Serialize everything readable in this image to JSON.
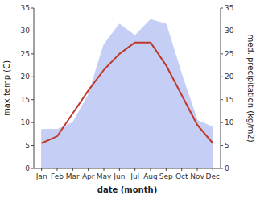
{
  "chart_data": {
    "type": "line",
    "categories": [
      "Jan",
      "Feb",
      "Mar",
      "Apr",
      "May",
      "Jun",
      "Jul",
      "Aug",
      "Sep",
      "Oct",
      "Nov",
      "Dec"
    ],
    "series": [
      {
        "type": "area",
        "axis": "y2",
        "color": "#c5cef5",
        "values": [
          8.5,
          8.5,
          10.0,
          16.0,
          27.0,
          31.5,
          29.0,
          32.5,
          31.5,
          20.5,
          10.5,
          9.0
        ]
      },
      {
        "type": "line",
        "color": "#c0392b",
        "values": [
          5.5,
          7.0,
          12.0,
          17.0,
          21.5,
          25.0,
          27.5,
          27.5,
          22.5,
          16.0,
          9.5,
          5.5
        ]
      }
    ],
    "xlabel": "date (month)",
    "ylabel": "max temp (C)",
    "y2label": "med. precipitation (kg/m2)",
    "ylim": [
      0,
      35
    ],
    "yticks": [
      0,
      5,
      10,
      15,
      20,
      25,
      30,
      35
    ],
    "y2lim": [
      0,
      35
    ],
    "y2ticks": [
      0,
      5,
      10,
      15,
      20,
      25,
      30,
      35
    ],
    "grid": false
  }
}
